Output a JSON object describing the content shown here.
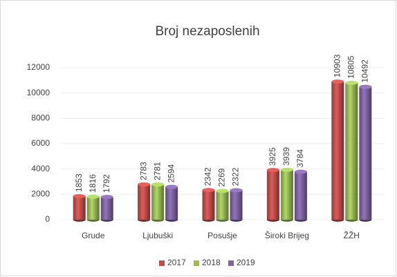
{
  "chart_data": {
    "type": "bar",
    "title": "Broj nezaposlenih",
    "categories": [
      "Grude",
      "Ljubuški",
      "Posušje",
      "Široki Brijeg",
      "ŽŽH"
    ],
    "series": [
      {
        "name": "2017",
        "color": "#c0504d",
        "values": [
          1853,
          2783,
          2342,
          3925,
          10903
        ]
      },
      {
        "name": "2018",
        "color": "#9bbb59",
        "values": [
          1816,
          2781,
          2269,
          3939,
          10805
        ]
      },
      {
        "name": "2019",
        "color": "#8064a2",
        "values": [
          1792,
          2594,
          2322,
          3784,
          10492
        ]
      }
    ],
    "ylim": [
      0,
      12000
    ],
    "yticks": [
      0,
      2000,
      4000,
      6000,
      8000,
      10000,
      12000
    ],
    "grid": true,
    "legend": "bottom"
  }
}
